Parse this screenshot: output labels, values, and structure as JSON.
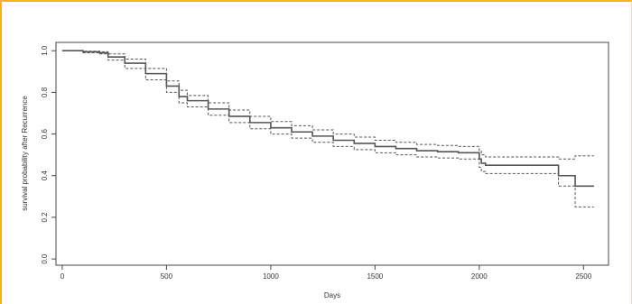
{
  "chart_data": {
    "type": "line",
    "title": "",
    "xlabel": "Days",
    "ylabel": "survival probability after Recurrence",
    "xlim": [
      -30,
      2620
    ],
    "ylim": [
      -0.03,
      1.04
    ],
    "xticks": [
      0,
      500,
      1000,
      1500,
      2000,
      2500
    ],
    "xtick_labels": [
      "0",
      "500",
      "1000",
      "1500",
      "2000",
      "2500"
    ],
    "yticks": [
      0.0,
      0.2,
      0.4,
      0.6,
      0.8,
      1.0
    ],
    "ytick_labels": [
      "0.0",
      "0.2",
      "0.4",
      "0.6",
      "0.8",
      "1.0"
    ],
    "grid": false,
    "step": true,
    "series": [
      {
        "role": "estimate",
        "line_style": "solid",
        "color": "#555555",
        "x": [
          0,
          100,
          180,
          220,
          300,
          400,
          500,
          560,
          600,
          700,
          800,
          900,
          1000,
          1100,
          1200,
          1300,
          1400,
          1500,
          1600,
          1700,
          1800,
          1900,
          2000,
          2010,
          2030,
          2060,
          2380,
          2460,
          2550
        ],
        "y": [
          1.0,
          0.995,
          0.99,
          0.97,
          0.94,
          0.89,
          0.83,
          0.78,
          0.76,
          0.72,
          0.685,
          0.655,
          0.63,
          0.61,
          0.59,
          0.57,
          0.555,
          0.54,
          0.53,
          0.52,
          0.515,
          0.51,
          0.48,
          0.46,
          0.45,
          0.45,
          0.4,
          0.35,
          0.35
        ]
      },
      {
        "role": "upper-ci",
        "line_style": "dashed",
        "color": "#555555",
        "x": [
          0,
          100,
          180,
          220,
          300,
          400,
          500,
          560,
          600,
          700,
          800,
          900,
          1000,
          1100,
          1200,
          1300,
          1400,
          1500,
          1600,
          1700,
          1800,
          1900,
          2000,
          2010,
          2030,
          2060,
          2380,
          2460,
          2550
        ],
        "y": [
          1.0,
          0.998,
          0.995,
          0.985,
          0.96,
          0.915,
          0.855,
          0.81,
          0.785,
          0.75,
          0.715,
          0.685,
          0.66,
          0.64,
          0.62,
          0.6,
          0.585,
          0.57,
          0.56,
          0.55,
          0.545,
          0.54,
          0.52,
          0.5,
          0.49,
          0.49,
          0.48,
          0.495,
          0.495
        ]
      },
      {
        "role": "lower-ci",
        "line_style": "dashed",
        "color": "#555555",
        "x": [
          0,
          100,
          180,
          220,
          300,
          400,
          500,
          560,
          600,
          700,
          800,
          900,
          1000,
          1100,
          1200,
          1300,
          1400,
          1500,
          1600,
          1700,
          1800,
          1900,
          2000,
          2010,
          2030,
          2060,
          2380,
          2460,
          2550
        ],
        "y": [
          1.0,
          0.99,
          0.985,
          0.955,
          0.915,
          0.86,
          0.8,
          0.75,
          0.73,
          0.69,
          0.655,
          0.625,
          0.6,
          0.58,
          0.56,
          0.54,
          0.525,
          0.51,
          0.5,
          0.49,
          0.485,
          0.48,
          0.44,
          0.42,
          0.41,
          0.41,
          0.35,
          0.25,
          0.25
        ]
      }
    ]
  }
}
